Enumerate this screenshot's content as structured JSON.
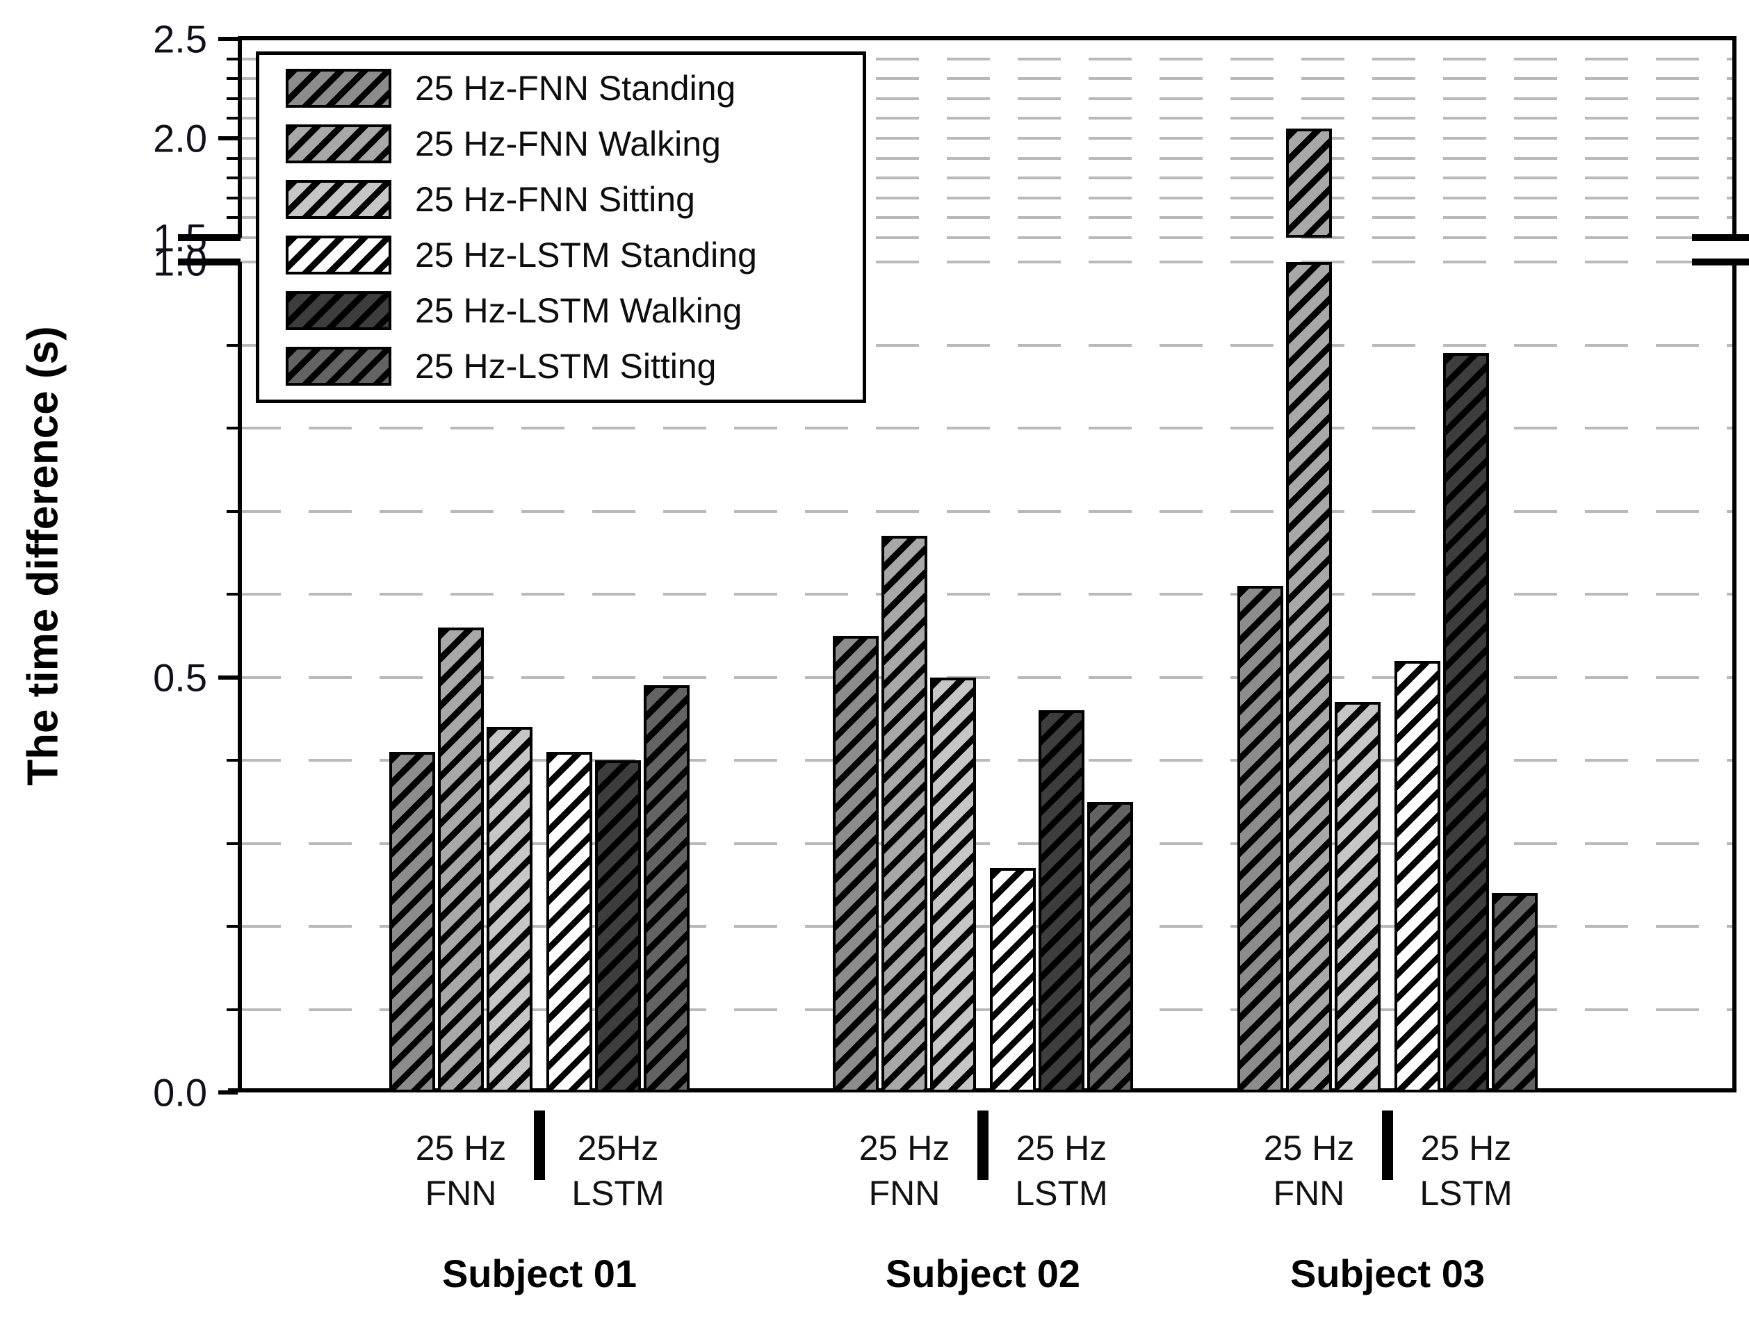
{
  "chart_data": {
    "type": "bar",
    "title": "",
    "ylabel": "The time difference (s)",
    "xlabel": "",
    "grid": "dashed horizontal, every 0.1",
    "legend_position": "upper-left inside plot",
    "y_axis": {
      "broken": true,
      "break_between": [
        1.0,
        1.5
      ],
      "lower_range": [
        0.0,
        1.0
      ],
      "upper_range": [
        1.5,
        2.5
      ],
      "major_ticks": [
        0.0,
        0.5,
        1.0,
        1.5,
        2.0,
        2.5
      ],
      "major_tick_labels": [
        "0.0",
        "0.5",
        "1.0",
        "1.5",
        "2.0",
        "2.5"
      ],
      "minor_step": 0.1
    },
    "groups": [
      {
        "subject": "Subject 01",
        "fnn_label": "25 Hz\nFNN",
        "lstm_label": "25Hz\nLSTM"
      },
      {
        "subject": "Subject 02",
        "fnn_label": "25 Hz\nFNN",
        "lstm_label": "25 Hz\nLSTM"
      },
      {
        "subject": "Subject 03",
        "fnn_label": "25 Hz\nFNN",
        "lstm_label": "25 Hz\nLSTM"
      }
    ],
    "series": [
      {
        "name": "25 Hz-FNN Standing",
        "fill": "#8c8c8c",
        "stripe": "#000000",
        "values": [
          0.41,
          0.55,
          0.61
        ]
      },
      {
        "name": "25 Hz-FNN Walking",
        "fill": "#a8a8a8",
        "stripe": "#000000",
        "values": [
          0.56,
          0.67,
          2.05
        ]
      },
      {
        "name": "25 Hz-FNN Sitting",
        "fill": "#c6c6c6",
        "stripe": "#000000",
        "values": [
          0.44,
          0.5,
          0.47
        ]
      },
      {
        "name": "25 Hz-LSTM Standing",
        "fill": "#ffffff",
        "stripe": "#000000",
        "values": [
          0.41,
          0.27,
          0.52
        ]
      },
      {
        "name": "25 Hz-LSTM Walking",
        "fill": "#3d3d3d",
        "stripe": "#000000",
        "values": [
          0.4,
          0.46,
          0.89
        ]
      },
      {
        "name": "25 Hz-LSTM Sitting",
        "fill": "#636363",
        "stripe": "#000000",
        "values": [
          0.49,
          0.35,
          0.24
        ]
      }
    ],
    "colors": {
      "axis": "#000000",
      "gridline": "#b9b9b9",
      "background": "#ffffff",
      "tick_label": "#10101c"
    }
  }
}
